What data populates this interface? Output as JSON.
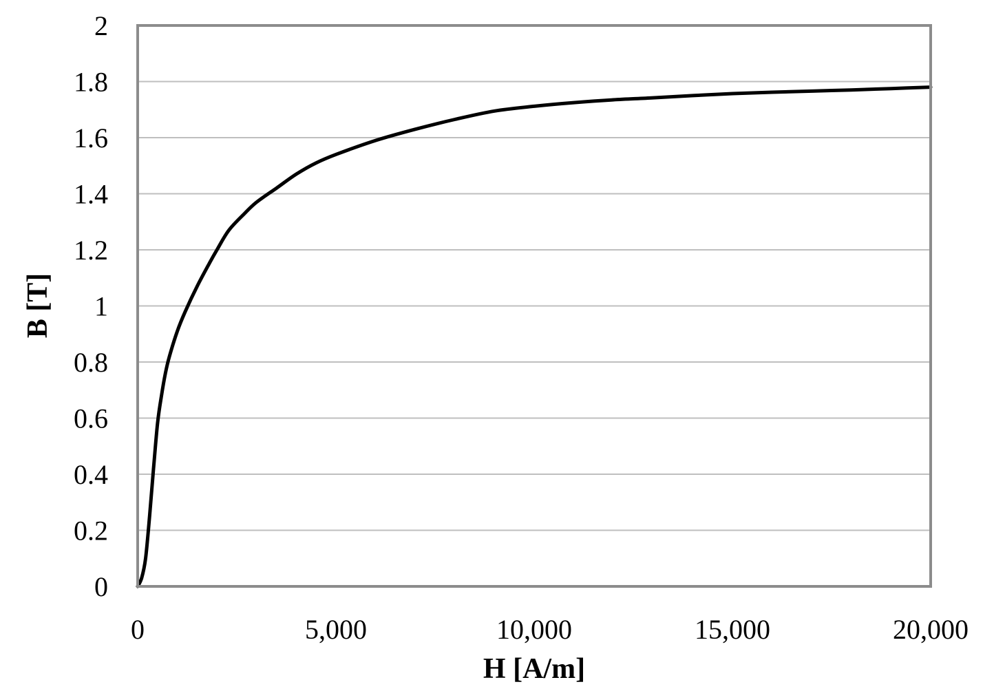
{
  "chart_data": {
    "type": "line",
    "title": "",
    "xlabel": "H [A/m]",
    "ylabel": "B [T]",
    "xlim": [
      0,
      20000
    ],
    "ylim": [
      0,
      2
    ],
    "x_ticks": [
      0,
      5000,
      10000,
      15000,
      20000
    ],
    "x_tick_labels": [
      "0",
      "5,000",
      "10,000",
      "15,000",
      "20,000"
    ],
    "y_ticks": [
      0,
      0.2,
      0.4,
      0.6,
      0.8,
      1.0,
      1.2,
      1.4,
      1.6,
      1.8,
      2.0
    ],
    "y_tick_labels": [
      "0",
      "0.2",
      "0.4",
      "0.6",
      "0.8",
      "1",
      "1.2",
      "1.4",
      "1.6",
      "1.8",
      "2"
    ],
    "grid": "horizontal",
    "legend": "none",
    "series": [
      {
        "color": "#000000",
        "x": [
          0,
          100,
          200,
          300,
          400,
          500,
          600,
          700,
          800,
          1000,
          1200,
          1500,
          1800,
          2000,
          2300,
          2700,
          3000,
          3500,
          4000,
          4500,
          5000,
          6000,
          7000,
          8000,
          9000,
          10000,
          11000,
          12000,
          13000,
          14000,
          15000,
          16000,
          17000,
          18000,
          19000,
          20000
        ],
        "y": [
          0,
          0.03,
          0.1,
          0.25,
          0.42,
          0.58,
          0.68,
          0.76,
          0.82,
          0.91,
          0.98,
          1.07,
          1.15,
          1.2,
          1.27,
          1.33,
          1.37,
          1.42,
          1.47,
          1.51,
          1.54,
          1.59,
          1.63,
          1.665,
          1.695,
          1.712,
          1.725,
          1.735,
          1.742,
          1.75,
          1.757,
          1.762,
          1.766,
          1.77,
          1.775,
          1.78
        ]
      }
    ]
  }
}
